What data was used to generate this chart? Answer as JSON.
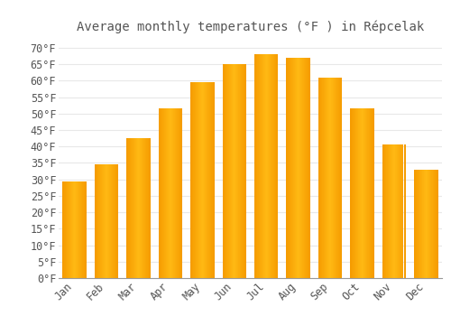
{
  "title": "Average monthly temperatures (°F ) in Répcelak",
  "months": [
    "Jan",
    "Feb",
    "Mar",
    "Apr",
    "May",
    "Jun",
    "Jul",
    "Aug",
    "Sep",
    "Oct",
    "Nov",
    "Dec"
  ],
  "values": [
    29.5,
    34.5,
    42.5,
    51.5,
    59.5,
    65.0,
    68.0,
    67.0,
    61.0,
    51.5,
    40.5,
    33.0
  ],
  "bar_color_center": "#FFB914",
  "bar_color_edge": "#F59B00",
  "background_color": "#FFFFFF",
  "grid_color": "#E8E8E8",
  "text_color": "#555555",
  "ylim": [
    0,
    73
  ],
  "yticks": [
    0,
    5,
    10,
    15,
    20,
    25,
    30,
    35,
    40,
    45,
    50,
    55,
    60,
    65,
    70
  ],
  "title_fontsize": 10,
  "tick_fontsize": 8.5,
  "bar_width": 0.75
}
